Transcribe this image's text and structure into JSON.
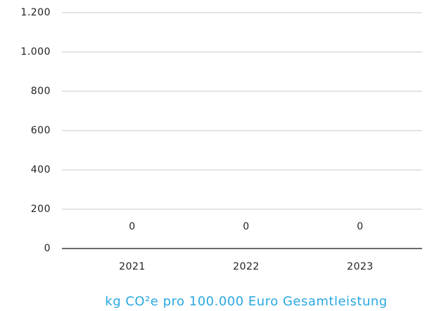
{
  "chart_data": {
    "type": "bar",
    "categories": [
      "2021",
      "2022",
      "2023"
    ],
    "values": [
      0,
      0,
      0
    ],
    "color": "#29a8e0",
    "x_axis_label": "kg CO²e pro 100.000 Euro Gesamtleistung",
    "ylim": [
      0,
      1200
    ],
    "yticks": [
      0,
      200,
      400,
      600,
      800,
      {
        "value": 1000,
        "label": "1.000"
      },
      {
        "value": 1200,
        "label": "1.200"
      }
    ],
    "grid": true
  }
}
